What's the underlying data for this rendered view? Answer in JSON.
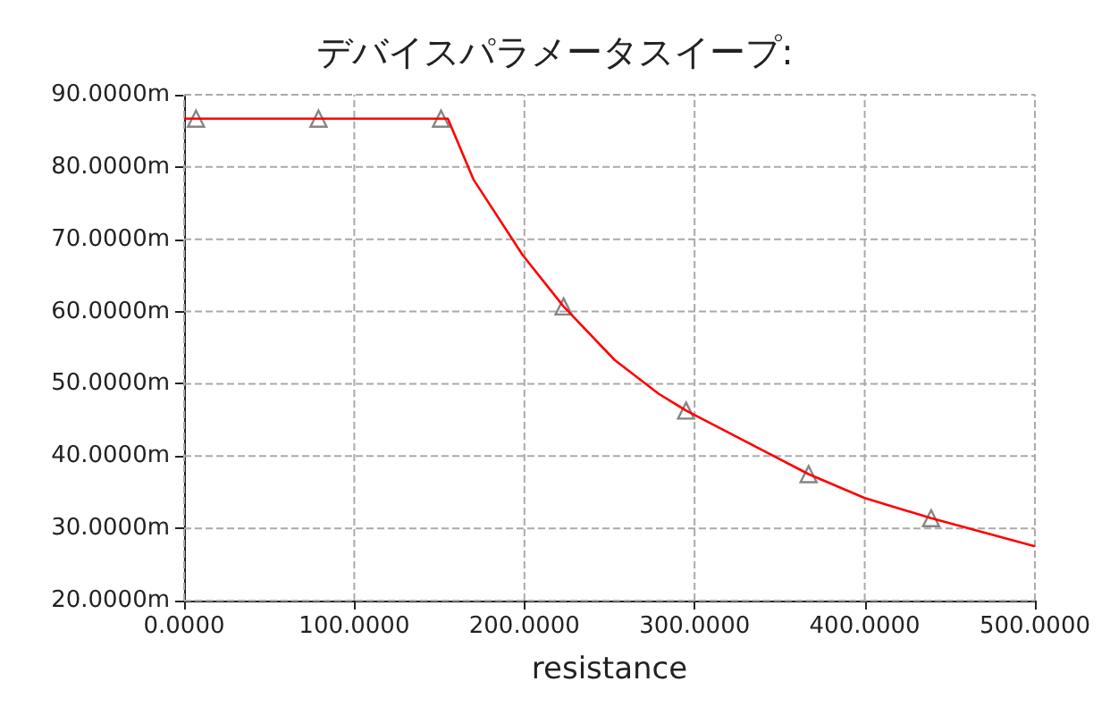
{
  "chart_data": {
    "type": "line",
    "title": "デバイスパラメータスイープ:",
    "xlabel": "resistance",
    "grid": true,
    "xlim": [
      0,
      500
    ],
    "xticks": [
      {
        "value": 0,
        "label": "0.0000"
      },
      {
        "value": 100,
        "label": "100.0000"
      },
      {
        "value": 200,
        "label": "200.0000"
      },
      {
        "value": 300,
        "label": "300.0000"
      },
      {
        "value": 400,
        "label": "400.0000"
      },
      {
        "value": 500,
        "label": "500.0000"
      }
    ],
    "ylim": [
      20,
      90
    ],
    "yticks": [
      {
        "value": 20,
        "label": "20.0000m"
      },
      {
        "value": 30,
        "label": "30.0000m"
      },
      {
        "value": 40,
        "label": "40.0000m"
      },
      {
        "value": 50,
        "label": "50.0000m"
      },
      {
        "value": 60,
        "label": "60.0000m"
      },
      {
        "value": 70,
        "label": "70.0000m"
      },
      {
        "value": 80,
        "label": "80.0000m"
      },
      {
        "value": 90,
        "label": "90.0000m"
      }
    ],
    "series": [
      {
        "color": "#ff0000",
        "marker": "none",
        "x": [
          0,
          79,
          155,
          170,
          199,
          223,
          253,
          279,
          295,
          367,
          400,
          439,
          500
        ],
        "values": [
          86.7,
          86.7,
          86.7,
          78.3,
          67.8,
          60.7,
          53.3,
          48.6,
          46.3,
          37.5,
          34.2,
          31.4,
          27.5
        ]
      },
      {
        "type": "scatter",
        "color": "#666666",
        "marker": "triangle",
        "x": [
          7,
          79,
          151,
          223,
          295,
          367,
          439
        ],
        "values": [
          86.7,
          86.7,
          86.7,
          60.7,
          46.3,
          37.5,
          31.4
        ]
      }
    ]
  }
}
